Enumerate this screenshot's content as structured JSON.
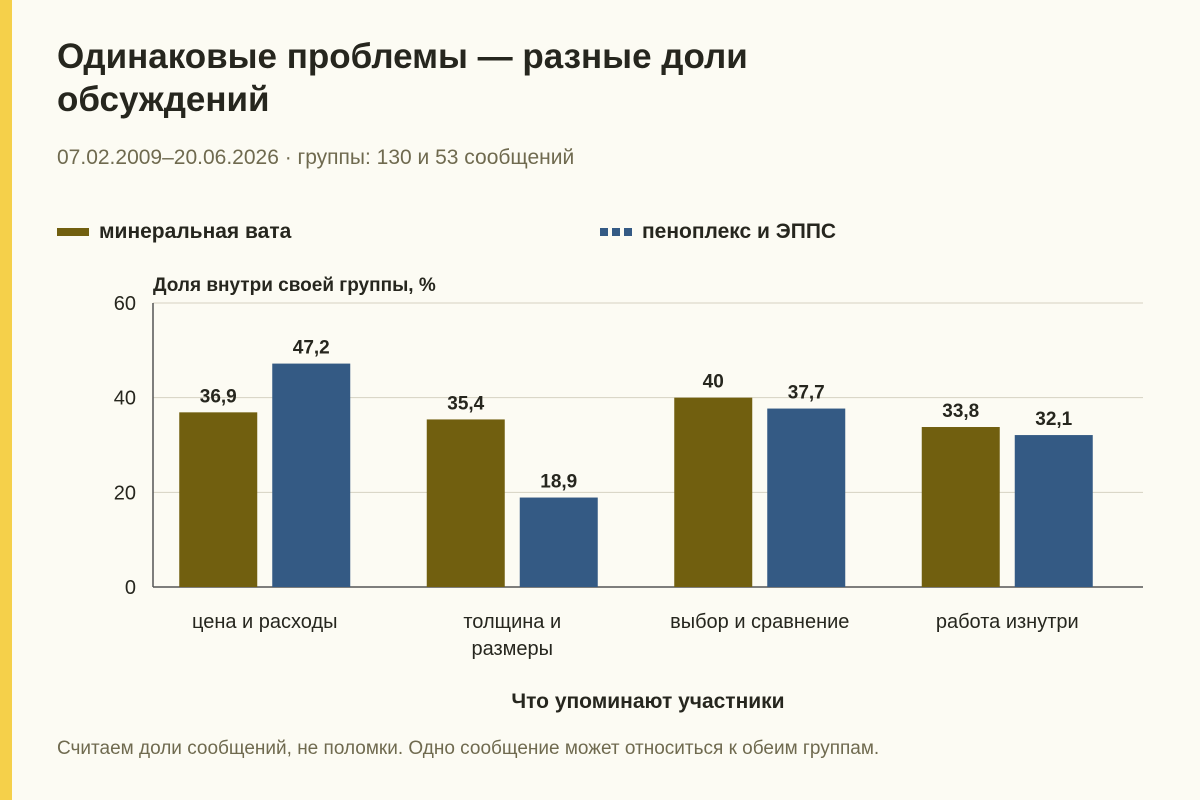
{
  "title": "Одинаковые проблемы — разные доли обсуждений",
  "subtitle": "07.02.2009–20.06.2026 · группы: 130 и 53 сообщений",
  "footnote": "Считаем доли сообщений, не поломки. Одно сообщение может относиться к обеим группам.",
  "colors": {
    "accent": "#f5d04a",
    "series1": "#715f0f",
    "series2": "#345a84",
    "grid": "#d6d2c2"
  },
  "chart_data": {
    "type": "bar",
    "ylabel": "Доля внутри своей группы, %",
    "xlabel": "Что упоминают участники",
    "ylim": [
      0,
      60
    ],
    "yticks": [
      "0",
      "20",
      "40",
      "60"
    ],
    "grid": true,
    "legend_position": "top",
    "categories": [
      [
        "цена и расходы"
      ],
      [
        "толщина и",
        "размеры"
      ],
      [
        "выбор и сравнение"
      ],
      [
        "работа изнутри"
      ]
    ],
    "series": [
      {
        "name": "минеральная вата",
        "color": "#715f0f",
        "values": [
          36.9,
          35.4,
          40,
          33.8
        ],
        "labels": [
          "36,9",
          "35,4",
          "40",
          "33,8"
        ]
      },
      {
        "name": "пеноплекс и ЭППС",
        "color": "#345a84",
        "values": [
          47.2,
          18.9,
          37.7,
          32.1
        ],
        "labels": [
          "47,2",
          "18,9",
          "37,7",
          "32,1"
        ]
      }
    ]
  }
}
